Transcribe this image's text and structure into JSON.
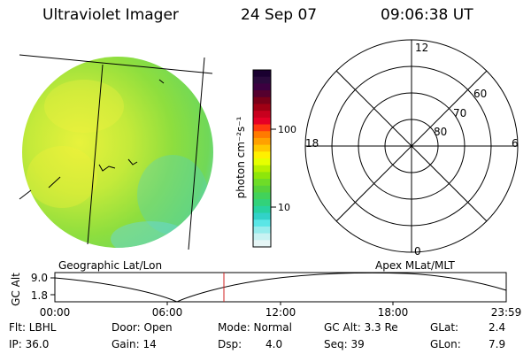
{
  "header": {
    "instrument": "Ultraviolet Imager",
    "date": "24 Sep 07",
    "time": "09:06:38 UT"
  },
  "colorbar": {
    "unit_label": "photon cm⁻²s⁻¹",
    "ticks": [
      "100",
      "10"
    ],
    "colors": [
      "#1a0030",
      "#2a0a3c",
      "#3c0040",
      "#55002e",
      "#7a0018",
      "#a00014",
      "#c8001e",
      "#e60026",
      "#ff3a10",
      "#ff7a00",
      "#ffa000",
      "#ffc800",
      "#fff000",
      "#e6ff00",
      "#b8f000",
      "#8ee60a",
      "#6edc28",
      "#56d23c",
      "#42d25a",
      "#32d27a",
      "#28d2a0",
      "#32d2c8",
      "#5ae6e6",
      "#96ecec",
      "#c8f2f2",
      "#e6f6f6"
    ]
  },
  "polar_grid": {
    "mlt_labels": {
      "top": "12",
      "left": "18",
      "right": "6",
      "bottom": "0"
    },
    "lat_labels": [
      "60",
      "70",
      "80"
    ]
  },
  "geo_label": "Geographic Lat/Lon",
  "apex_label": "Apex MLat/MLT",
  "altitude_plot": {
    "axis_title": "GC Alt",
    "y_ticks": [
      "9.0",
      "1.8"
    ],
    "x_ticks": [
      "00:00",
      "06:00",
      "12:00",
      "18:00",
      "23:59"
    ]
  },
  "info": {
    "filter": "Flt: LBHL",
    "ip": "IP: 36.0",
    "door": "Door: Open",
    "gain": "Gain: 14",
    "mode": "Mode: Normal",
    "dsp_label": "Dsp:",
    "dsp_value": "4.0",
    "gc_alt": "GC Alt: 3.3 Re",
    "seq": "Seq: 39",
    "glat_label": "GLat:",
    "glat_value": "2.4",
    "glon_label": "GLon:",
    "glon_value": "7.9"
  }
}
